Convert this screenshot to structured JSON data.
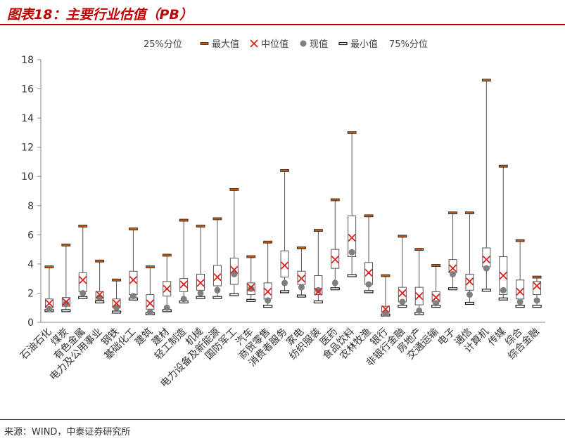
{
  "header": {
    "title": "图表18：主要行业估值（PB）"
  },
  "source": "来源：WIND，中泰证券研究所",
  "colors": {
    "accent": "#c00000",
    "box_edge": "#555555",
    "median": "#e0201c",
    "current": "#7f7f7f",
    "max_cap": "#c55a11",
    "min_cap": "#222222",
    "axis": "#888888"
  },
  "legend": [
    "25%分位",
    "最大值",
    "中位值",
    "现值",
    "最小值",
    "75%分位"
  ],
  "chart_data": {
    "type": "box",
    "title": "",
    "xlabel": "",
    "ylabel": "",
    "ylim": [
      0,
      18
    ],
    "yticks": [
      0,
      2,
      4,
      6,
      8,
      10,
      12,
      14,
      16,
      18
    ],
    "grid": false,
    "legend_position": "top",
    "categories": [
      "石油石化",
      "煤炭",
      "有色金属",
      "电力及公用事业",
      "钢铁",
      "基础化工",
      "建筑",
      "建材",
      "轻工制造",
      "机械",
      "电力设备及新能源",
      "国防军工",
      "汽车",
      "商贸零售",
      "消费者服务",
      "家电",
      "纺织服装",
      "医药",
      "食品饮料",
      "农林牧渔",
      "银行",
      "非银行金融",
      "房地产",
      "交通运输",
      "电子",
      "通信",
      "计算机",
      "传媒",
      "综合",
      "综合金融"
    ],
    "series": [
      {
        "name": "最大值",
        "values": [
          3.8,
          5.3,
          6.6,
          4.2,
          2.9,
          6.4,
          3.8,
          4.6,
          7.0,
          6.6,
          7.1,
          9.1,
          4.5,
          5.5,
          10.4,
          5.1,
          6.3,
          8.4,
          13.0,
          7.3,
          3.2,
          5.9,
          5.0,
          3.9,
          7.5,
          7.5,
          16.6,
          10.7,
          5.6,
          3.1
        ]
      },
      {
        "name": "75%分位",
        "values": [
          1.6,
          1.7,
          3.4,
          2.1,
          1.6,
          3.5,
          1.9,
          2.8,
          3.0,
          3.3,
          3.9,
          4.4,
          2.7,
          2.7,
          4.9,
          3.5,
          3.2,
          5.0,
          7.3,
          4.1,
          1.1,
          2.4,
          2.4,
          2.1,
          4.3,
          3.3,
          5.1,
          4.5,
          2.9,
          2.8
        ]
      },
      {
        "name": "中位值",
        "values": [
          1.3,
          1.4,
          2.9,
          1.9,
          1.3,
          2.9,
          1.3,
          2.3,
          2.6,
          2.7,
          3.1,
          3.6,
          2.4,
          2.1,
          3.9,
          3.0,
          2.1,
          4.3,
          5.8,
          3.4,
          0.9,
          2.0,
          1.8,
          1.7,
          3.7,
          2.8,
          4.3,
          3.2,
          2.1,
          2.5
        ]
      },
      {
        "name": "25%分位",
        "values": [
          1.0,
          1.1,
          2.1,
          1.5,
          1.0,
          1.9,
          0.9,
          1.8,
          2.1,
          2.2,
          2.5,
          2.6,
          1.9,
          1.6,
          3.1,
          2.6,
          1.9,
          3.7,
          4.5,
          2.6,
          0.7,
          1.4,
          1.2,
          1.4,
          3.4,
          2.2,
          3.8,
          1.9,
          1.6,
          1.9
        ]
      },
      {
        "name": "最小值",
        "values": [
          0.8,
          0.8,
          1.7,
          1.4,
          0.7,
          1.6,
          0.6,
          0.8,
          1.4,
          1.7,
          1.7,
          1.9,
          1.5,
          1.1,
          2.1,
          1.8,
          1.4,
          2.3,
          3.2,
          2.1,
          0.5,
          1.1,
          0.6,
          1.1,
          2.3,
          1.3,
          2.2,
          1.6,
          1.1,
          1.1
        ]
      },
      {
        "name": "现值",
        "values": [
          0.9,
          1.3,
          2.0,
          1.7,
          1.0,
          1.8,
          0.7,
          1.0,
          1.6,
          2.0,
          2.2,
          3.3,
          2.3,
          1.5,
          2.7,
          2.4,
          2.2,
          2.7,
          4.8,
          2.6,
          0.6,
          1.4,
          0.8,
          1.3,
          3.3,
          1.9,
          3.7,
          2.2,
          1.4,
          1.5
        ]
      }
    ]
  }
}
